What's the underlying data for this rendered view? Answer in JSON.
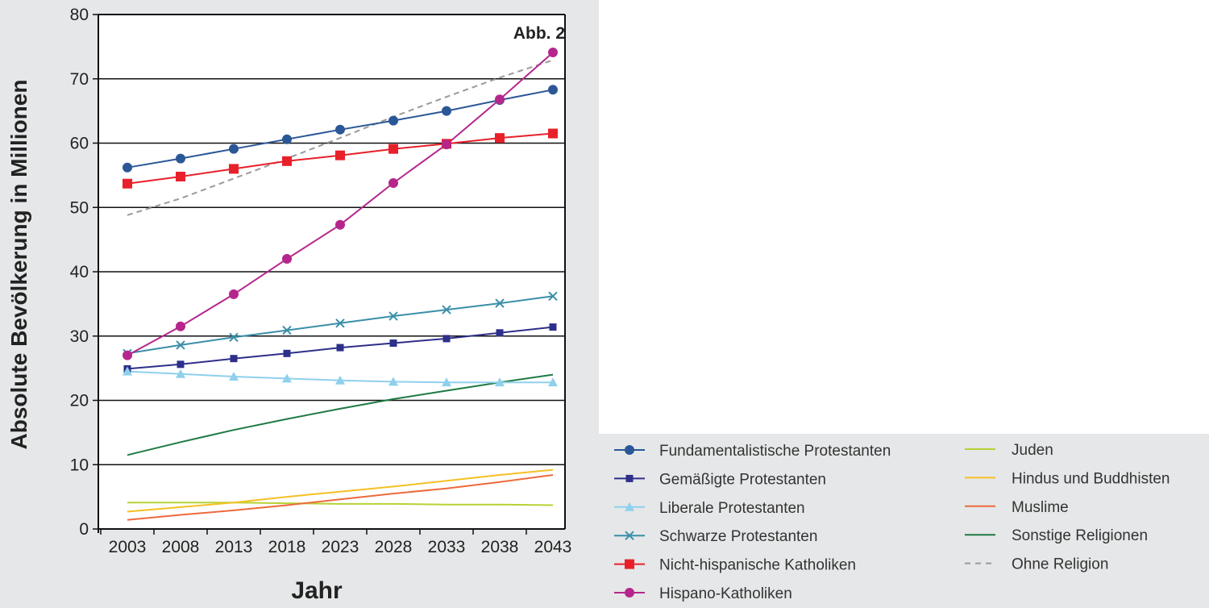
{
  "chart_data": {
    "type": "line",
    "annotation": "Abb. 2",
    "xlabel": "Jahr",
    "ylabel": "Absolute Bevölkerung in Millionen",
    "ylim": [
      0,
      80
    ],
    "y_ticks": [
      0,
      10,
      20,
      30,
      40,
      50,
      60,
      70,
      80
    ],
    "x": [
      2003,
      2008,
      2013,
      2018,
      2023,
      2028,
      2033,
      2038,
      2043
    ],
    "x_labels": [
      "2003",
      "2008",
      "2013",
      "2018",
      "2023",
      "2028",
      "2033",
      "2038",
      "2043"
    ],
    "grid": "horizontal",
    "legend_placement": "bottom-right",
    "series": [
      {
        "name": "Fundamentalistische Protestanten",
        "color": "#2b5797",
        "marker": "circle",
        "dash": "solid",
        "values": [
          56.2,
          57.6,
          59.1,
          60.6,
          62.1,
          63.5,
          65.0,
          66.7,
          68.3
        ]
      },
      {
        "name": "Gemäßigte Protestanten",
        "color": "#2e2f8a",
        "marker": "square-small",
        "dash": "solid",
        "values": [
          24.9,
          25.6,
          26.5,
          27.3,
          28.2,
          28.9,
          29.6,
          30.5,
          31.4
        ]
      },
      {
        "name": "Liberale Protestanten",
        "color": "#8fd0ec",
        "marker": "triangle",
        "dash": "solid",
        "values": [
          24.5,
          24.1,
          23.7,
          23.4,
          23.1,
          22.9,
          22.8,
          22.8,
          22.8
        ]
      },
      {
        "name": "Schwarze Protestanten",
        "color": "#3a8fa8",
        "marker": "x",
        "dash": "solid",
        "values": [
          27.3,
          28.6,
          29.8,
          30.9,
          32.0,
          33.1,
          34.1,
          35.1,
          36.2
        ]
      },
      {
        "name": "Nicht-hispanische Katholiken",
        "color": "#e8202a",
        "marker": "square",
        "dash": "solid",
        "values": [
          53.7,
          54.8,
          56.0,
          57.2,
          58.1,
          59.1,
          59.9,
          60.8,
          61.5
        ]
      },
      {
        "name": "Hispano-Katholiken",
        "color": "#b5268c",
        "marker": "circle",
        "dash": "solid",
        "values": [
          27.0,
          31.5,
          36.5,
          42.0,
          47.3,
          53.8,
          59.8,
          66.8,
          74.1
        ]
      },
      {
        "name": "Juden",
        "color": "#b5d334",
        "marker": "none",
        "dash": "solid",
        "values": [
          4.1,
          4.1,
          4.1,
          4.0,
          3.9,
          3.9,
          3.8,
          3.8,
          3.7
        ]
      },
      {
        "name": "Hindus und Buddhisten",
        "color": "#f5c023",
        "marker": "none",
        "dash": "solid",
        "values": [
          2.7,
          3.4,
          4.1,
          5.0,
          5.8,
          6.6,
          7.5,
          8.4,
          9.2
        ]
      },
      {
        "name": "Muslime",
        "color": "#ee6a3c",
        "marker": "none",
        "dash": "solid",
        "values": [
          1.4,
          2.2,
          2.9,
          3.7,
          4.6,
          5.5,
          6.3,
          7.3,
          8.4
        ]
      },
      {
        "name": "Sonstige Religionen",
        "color": "#1f7a45",
        "marker": "none",
        "dash": "solid",
        "values": [
          11.5,
          13.5,
          15.4,
          17.1,
          18.7,
          20.2,
          21.5,
          22.8,
          24.0
        ]
      },
      {
        "name": "Ohne Religion",
        "color": "#9a9a9a",
        "marker": "none",
        "dash": "dashed",
        "values": [
          48.8,
          51.4,
          54.5,
          57.6,
          60.8,
          64.1,
          67.2,
          70.2,
          72.9
        ]
      }
    ]
  }
}
